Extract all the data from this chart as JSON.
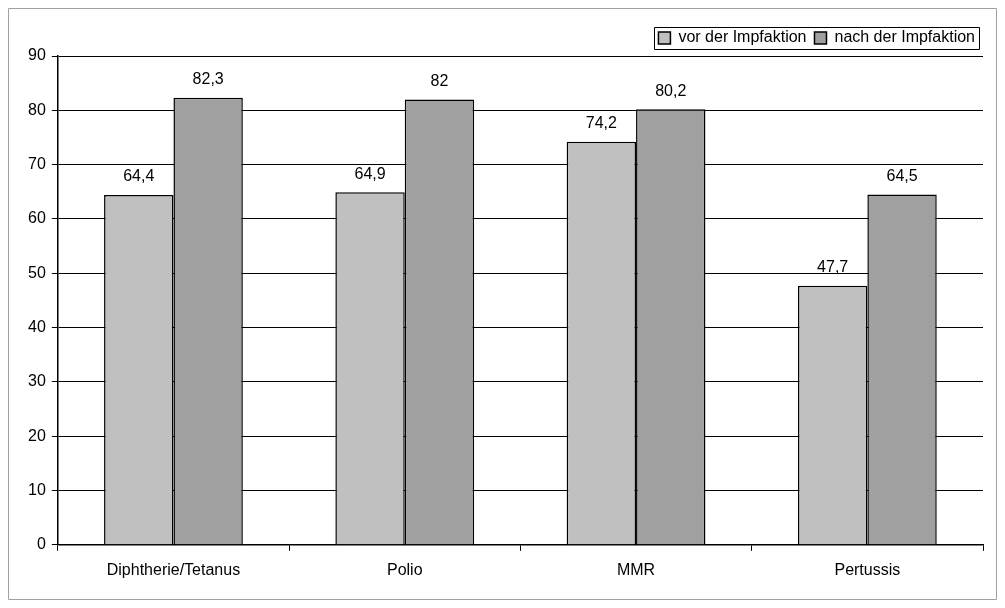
{
  "chart_data": {
    "type": "bar",
    "categories": [
      "Diphtherie/Tetanus",
      "Polio",
      "MMR",
      "Pertussis"
    ],
    "series": [
      {
        "name": "vor der Impfaktion",
        "color": "#c0c0c0",
        "values": [
          64.4,
          64.9,
          74.2,
          47.7
        ],
        "value_labels": [
          "64,4",
          "64,9",
          "74,2",
          "47,7"
        ]
      },
      {
        "name": "nach der Impfaktion",
        "color": "#a0a0a0",
        "values": [
          82.3,
          82,
          80.2,
          64.5
        ],
        "value_labels": [
          "82,3",
          "82",
          "80,2",
          "64,5"
        ]
      }
    ],
    "ylim": [
      0,
      90
    ],
    "yticks": [
      0,
      10,
      20,
      30,
      40,
      50,
      60,
      70,
      80,
      90
    ],
    "grid": "y",
    "legend": "top right"
  }
}
